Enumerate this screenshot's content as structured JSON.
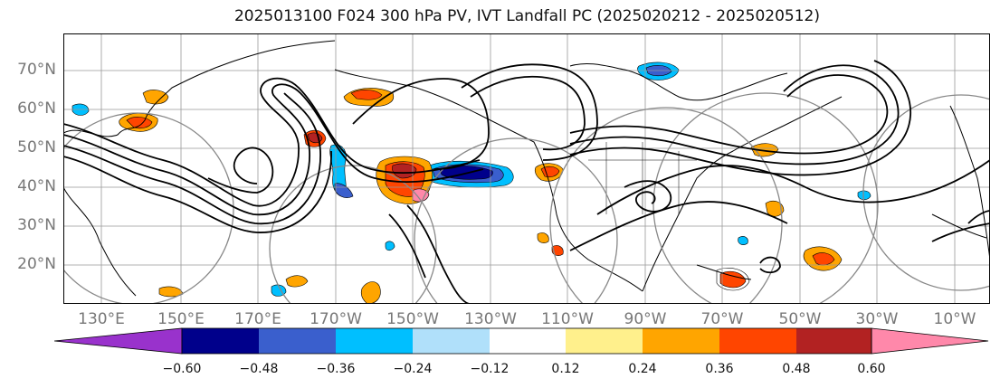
{
  "title": "2025013100 F024 300 hPa PV, IVT Landfall PC (2025020212 - 2025020512)",
  "lat_labels": [
    "70°N",
    "60°N",
    "50°N",
    "40°N",
    "30°N",
    "20°N"
  ],
  "lon_labels": [
    "130°E",
    "150°E",
    "170°E",
    "170°W",
    "150°W",
    "130°W",
    "110°W",
    "90°W",
    "70°W",
    "50°W",
    "30°W",
    "10°W"
  ],
  "colorbar": {
    "labels": [
      "−0.60",
      "−0.48",
      "−0.36",
      "−0.24",
      "−0.12",
      "0.12",
      "0.24",
      "0.36",
      "0.48",
      "0.60"
    ],
    "colors": [
      "#9932cc",
      "#00008b",
      "#3a5fcd",
      "#00bfff",
      "#b0e0fa",
      "#ffffff",
      "#fff08c",
      "#ffa500",
      "#ff4500",
      "#b22222",
      "#ff88aa"
    ]
  }
}
